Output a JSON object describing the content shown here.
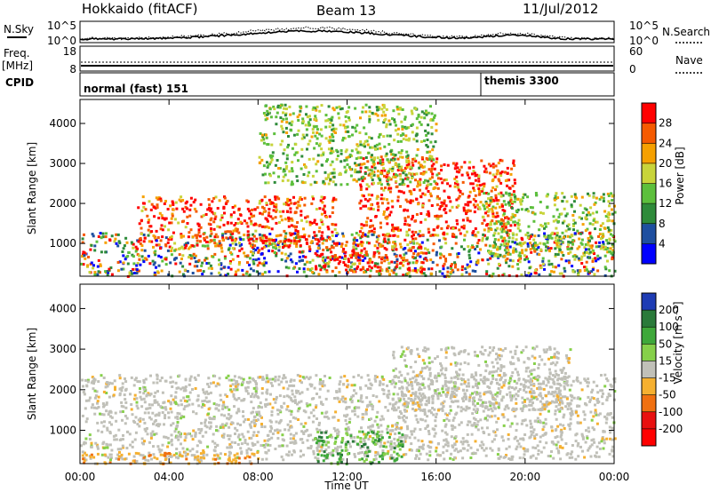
{
  "header": {
    "station": "Hokkaido (fitACF)",
    "beam": "Beam 13",
    "date": "11/Jul/2012"
  },
  "nsky_panel": {
    "left_label": "N.Sky",
    "left_ticks": [
      "10^5",
      "10^0"
    ],
    "right_ticks": [
      "10^5",
      "10^0"
    ],
    "right_label": "N.Search",
    "legend_style": "dotted"
  },
  "freq_panel": {
    "left_label_1": "Freq.",
    "left_label_2": "[MHz]",
    "left_ticks": [
      "18",
      "8"
    ],
    "right_ticks": [
      "60",
      "0"
    ],
    "right_label": "Nave",
    "legend_style": "dotted"
  },
  "cpid_panel": {
    "label": "CPID",
    "modes": [
      {
        "name": "normal (fast) 151",
        "start_hour": 0
      },
      {
        "name": "themis 3300",
        "start_hour": 18
      }
    ]
  },
  "chart_data": [
    {
      "type": "heatmap",
      "id": "power",
      "ylabel": "Slant Range [km]",
      "xlabel": "",
      "xlim": [
        0,
        24
      ],
      "ylim": [
        180,
        4600
      ],
      "yticks": [
        "1000",
        "2000",
        "3000",
        "4000"
      ],
      "xticks": [
        "00:00",
        "04:00",
        "08:00",
        "12:00",
        "16:00",
        "20:00",
        "00:00"
      ],
      "colorbar": {
        "label": "Power [dB]",
        "ticks": [
          "4",
          "8",
          "12",
          "16",
          "20",
          "24",
          "28"
        ],
        "colors": [
          "#0000ff",
          "#1e4fa0",
          "#2e8b3a",
          "#5cbf3c",
          "#c8d43a",
          "#f5a000",
          "#f55a00",
          "#ff0000"
        ]
      },
      "features": [
        {
          "name": "near-range layer",
          "x": [
            0.0,
            24.0
          ],
          "y": [
            200,
            1300
          ],
          "level": "mixed"
        },
        {
          "name": "main echo arc",
          "x": [
            2.5,
            11.5
          ],
          "y": [
            900,
            2200
          ],
          "level": "high"
        },
        {
          "name": "late-morning patch",
          "x": [
            10.5,
            15.5
          ],
          "y": [
            300,
            1100
          ],
          "level": "high"
        },
        {
          "name": "afternoon arcs",
          "x": [
            12.5,
            19.5
          ],
          "y": [
            1200,
            3200
          ],
          "level": "high"
        },
        {
          "name": "evening arc",
          "x": [
            18.0,
            24.0
          ],
          "y": [
            700,
            2300
          ],
          "level": "medium"
        },
        {
          "name": "far-range scatter",
          "x": [
            8.0,
            16.0
          ],
          "y": [
            2500,
            4500
          ],
          "level": "medium"
        }
      ]
    },
    {
      "type": "heatmap",
      "id": "velocity",
      "ylabel": "Slant Range [km]",
      "xlabel": "Time UT",
      "xlim": [
        0,
        24
      ],
      "ylim": [
        180,
        4600
      ],
      "yticks": [
        "1000",
        "2000",
        "3000",
        "4000"
      ],
      "xticks": [
        "00:00",
        "04:00",
        "08:00",
        "12:00",
        "16:00",
        "20:00",
        "00:00"
      ],
      "colorbar": {
        "label": "Velocity [m s⁻¹]",
        "ticks": [
          "200",
          "100",
          "50",
          "15",
          "-15",
          "-50",
          "-100",
          "-200"
        ],
        "colors": [
          "#1e3cb4",
          "#2a7a3a",
          "#3ea83a",
          "#86d04a",
          "#c0c0b8",
          "#f5b030",
          "#f07010",
          "#e81010",
          "#ff0000"
        ]
      },
      "features": [
        {
          "name": "ground scatter band",
          "x": [
            0.0,
            24.0
          ],
          "y": [
            300,
            2400
          ],
          "level": "near-zero"
        },
        {
          "name": "negative near range",
          "x": [
            0.0,
            8.0
          ],
          "y": [
            200,
            500
          ],
          "level": "negative"
        },
        {
          "name": "positive mid-day",
          "x": [
            10.5,
            14.5
          ],
          "y": [
            180,
            1000
          ],
          "level": "positive"
        },
        {
          "name": "afternoon arcs",
          "x": [
            14.0,
            22.0
          ],
          "y": [
            1500,
            3100
          ],
          "level": "near-zero"
        }
      ]
    }
  ]
}
